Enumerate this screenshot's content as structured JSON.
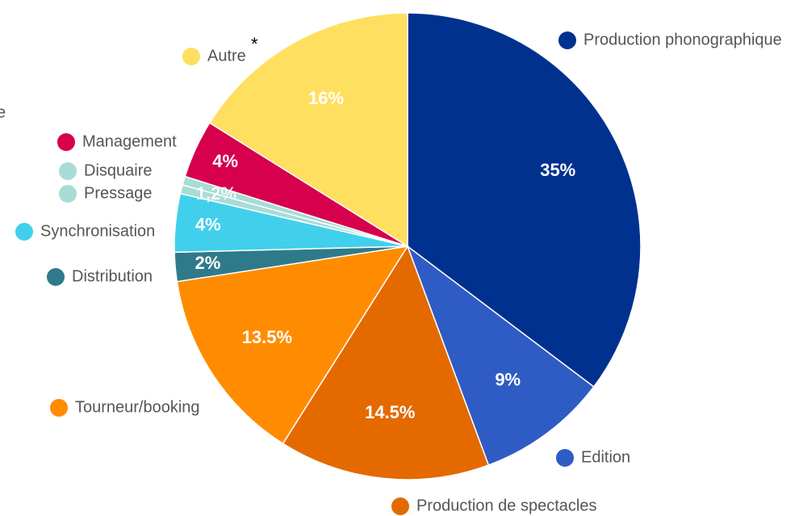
{
  "chart_data": {
    "type": "pie",
    "categories": [
      "Production phonographique",
      "Edition",
      "Production de spectacles",
      "Tourneur/booking",
      "Distribution",
      "Synchronisation",
      "Pressage",
      "Disquaire",
      "Management",
      "Autre"
    ],
    "values": [
      35,
      9,
      14.5,
      13.5,
      2,
      4,
      0.6,
      0.6,
      4,
      16
    ],
    "value_labels": [
      "35%",
      "9%",
      "14.5%",
      "13.5%",
      "2%",
      "4%",
      null,
      null,
      "4%",
      "16%"
    ],
    "colors": [
      "#00318f",
      "#2f5bc4",
      "#e46a00",
      "#ff8c00",
      "#2f7a8a",
      "#40d0ec",
      "#a8dcd6",
      "#a8dcd6",
      "#d6004d",
      "#ffdf60"
    ],
    "combined_label": {
      "value": 1.2,
      "label": "1,2%"
    },
    "legend_note": "*",
    "stray_text": "e"
  }
}
